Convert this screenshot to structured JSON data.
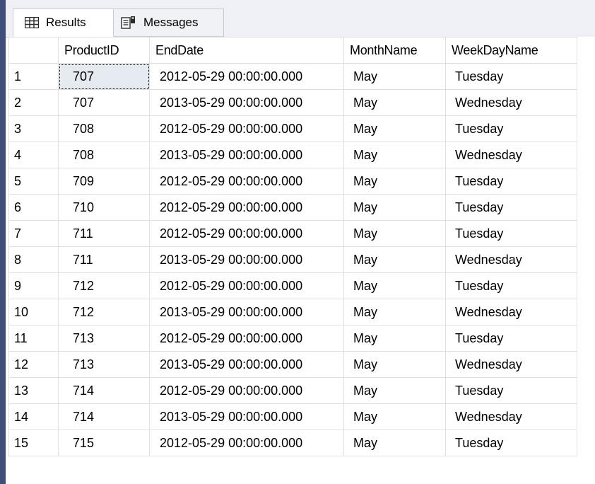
{
  "tabs": [
    {
      "label": "Results",
      "icon": "grid-icon"
    },
    {
      "label": "Messages",
      "icon": "messages-icon"
    }
  ],
  "columns": [
    "",
    "ProductID",
    "EndDate",
    "MonthName",
    "WeekDayName"
  ],
  "rows": [
    {
      "n": "1",
      "pid": "707",
      "end": "2012-05-29 00:00:00.000",
      "month": "May",
      "weekday": "Tuesday"
    },
    {
      "n": "2",
      "pid": "707",
      "end": "2013-05-29 00:00:00.000",
      "month": "May",
      "weekday": "Wednesday"
    },
    {
      "n": "3",
      "pid": "708",
      "end": "2012-05-29 00:00:00.000",
      "month": "May",
      "weekday": "Tuesday"
    },
    {
      "n": "4",
      "pid": "708",
      "end": "2013-05-29 00:00:00.000",
      "month": "May",
      "weekday": "Wednesday"
    },
    {
      "n": "5",
      "pid": "709",
      "end": "2012-05-29 00:00:00.000",
      "month": "May",
      "weekday": "Tuesday"
    },
    {
      "n": "6",
      "pid": "710",
      "end": "2012-05-29 00:00:00.000",
      "month": "May",
      "weekday": "Tuesday"
    },
    {
      "n": "7",
      "pid": "711",
      "end": "2012-05-29 00:00:00.000",
      "month": "May",
      "weekday": "Tuesday"
    },
    {
      "n": "8",
      "pid": "711",
      "end": "2013-05-29 00:00:00.000",
      "month": "May",
      "weekday": "Wednesday"
    },
    {
      "n": "9",
      "pid": "712",
      "end": "2012-05-29 00:00:00.000",
      "month": "May",
      "weekday": "Tuesday"
    },
    {
      "n": "10",
      "pid": "712",
      "end": "2013-05-29 00:00:00.000",
      "month": "May",
      "weekday": "Wednesday"
    },
    {
      "n": "11",
      "pid": "713",
      "end": "2012-05-29 00:00:00.000",
      "month": "May",
      "weekday": "Tuesday"
    },
    {
      "n": "12",
      "pid": "713",
      "end": "2013-05-29 00:00:00.000",
      "month": "May",
      "weekday": "Wednesday"
    },
    {
      "n": "13",
      "pid": "714",
      "end": "2012-05-29 00:00:00.000",
      "month": "May",
      "weekday": "Tuesday"
    },
    {
      "n": "14",
      "pid": "714",
      "end": "2013-05-29 00:00:00.000",
      "month": "May",
      "weekday": "Wednesday"
    },
    {
      "n": "15",
      "pid": "715",
      "end": "2012-05-29 00:00:00.000",
      "month": "May",
      "weekday": "Tuesday"
    }
  ],
  "selected_cell": {
    "row": 1,
    "column": "ProductID"
  },
  "colors": {
    "accent_bar": "#3d4f7a",
    "selected_cell_bg": "#e6ebf1"
  }
}
